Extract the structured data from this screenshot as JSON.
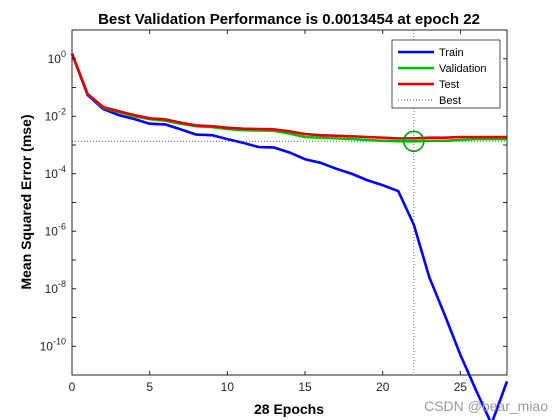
{
  "chart_data": {
    "type": "line",
    "title": "Best Validation Performance is 0.0013454 at epoch 22",
    "xlabel": "28 Epochs",
    "ylabel": "Mean Squared Error  (mse)",
    "xlim": [
      0,
      28
    ],
    "ylim_log10": [
      -11,
      1
    ],
    "yscale": "log",
    "x_ticks": [
      0,
      5,
      10,
      15,
      20,
      25
    ],
    "y_tick_exponents": [
      0,
      -2,
      -4,
      -6,
      -8,
      -10
    ],
    "legend_position": "top-right",
    "x": [
      0,
      1,
      2,
      3,
      4,
      5,
      6,
      7,
      8,
      9,
      10,
      11,
      12,
      13,
      14,
      15,
      16,
      17,
      18,
      19,
      20,
      21,
      22,
      23,
      24,
      25,
      26,
      27,
      28
    ],
    "series": [
      {
        "name": "Train",
        "color": "#0000ff",
        "values": [
          1.5,
          0.055,
          0.018,
          0.011,
          0.008,
          0.0055,
          0.0052,
          0.0035,
          0.0023,
          0.0022,
          0.0016,
          0.0012,
          0.00085,
          0.00082,
          0.00055,
          0.00032,
          0.00024,
          0.00015,
          0.0001,
          6e-05,
          4e-05,
          2.5e-05,
          1.7e-06,
          2.5e-08,
          1.2e-09,
          5e-11,
          3e-12,
          2e-13,
          6e-12
        ]
      },
      {
        "name": "Validation",
        "color": "#00c000",
        "values": [
          1.5,
          0.06,
          0.02,
          0.014,
          0.01,
          0.008,
          0.007,
          0.0055,
          0.0045,
          0.0042,
          0.0036,
          0.0033,
          0.0032,
          0.0031,
          0.0025,
          0.0019,
          0.0018,
          0.0017,
          0.0016,
          0.0015,
          0.0014,
          0.00136,
          0.0013454,
          0.0014,
          0.0014,
          0.0015,
          0.0016,
          0.0016,
          0.0016
        ]
      },
      {
        "name": "Test",
        "color": "#e00000",
        "values": [
          1.5,
          0.06,
          0.021,
          0.015,
          0.011,
          0.0085,
          0.0078,
          0.006,
          0.0048,
          0.0045,
          0.004,
          0.0037,
          0.0036,
          0.0035,
          0.003,
          0.0024,
          0.0022,
          0.0021,
          0.002,
          0.0019,
          0.0018,
          0.0017,
          0.0017,
          0.0018,
          0.0018,
          0.0019,
          0.0019,
          0.0019,
          0.0019
        ]
      }
    ],
    "best": {
      "name": "Best",
      "epoch": 22,
      "value": 0.0013454,
      "color": "#00a000"
    }
  },
  "watermark": "CSDN @bear_miao"
}
